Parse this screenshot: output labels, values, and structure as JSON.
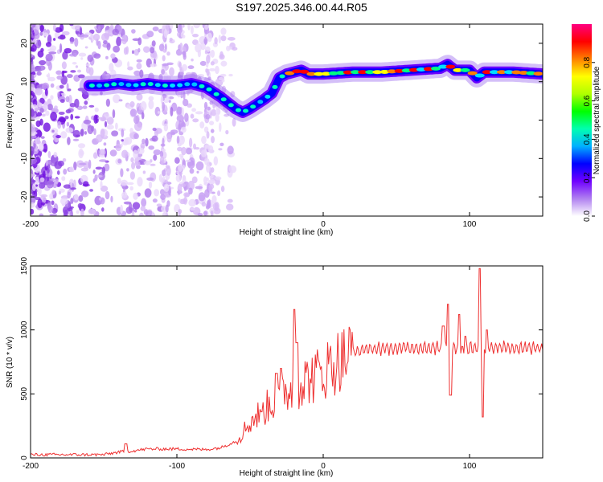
{
  "title": "S197.2025.346.00.44.R05",
  "chart_data": [
    {
      "type": "heatmap",
      "xlabel": "Height of straight line (km)",
      "ylabel": "Frequency (Hz)",
      "xlim": [
        -200,
        150
      ],
      "ylim": [
        -25,
        25
      ],
      "xticks": [
        -200,
        -100,
        0,
        100
      ],
      "yticks": [
        -20,
        -10,
        0,
        10,
        20
      ],
      "colorbar": {
        "label": "Normalized spectral amplitude",
        "range": [
          0,
          1
        ],
        "ticks": [
          0.0,
          0.2,
          0.4,
          0.6,
          0.8
        ],
        "tick_labels": [
          "0.0",
          "0.2",
          "0.4",
          "0.6",
          "0.8"
        ],
        "colormap": [
          "#ffffff",
          "#b080f0",
          "#7000ff",
          "#0000ff",
          "#00b0ff",
          "#00ffb0",
          "#00ff00",
          "#b0ff00",
          "#ffff00",
          "#ff8000",
          "#ff0000",
          "#ff0080"
        ]
      },
      "ridge": {
        "x": [
          -160,
          -150,
          -140,
          -130,
          -120,
          -110,
          -100,
          -90,
          -80,
          -70,
          -60,
          -55,
          -50,
          -40,
          -35,
          -30,
          -25,
          -20,
          -15,
          -10,
          0,
          20,
          40,
          60,
          80,
          85,
          90,
          100,
          105,
          110,
          130,
          150
        ],
        "y": [
          9,
          9,
          9.5,
          9,
          9.5,
          9,
          9,
          9.5,
          8.5,
          6,
          3,
          2,
          3,
          5.5,
          7,
          11,
          12,
          12.5,
          13,
          12,
          12,
          12.5,
          12.5,
          13,
          13.5,
          14.5,
          13,
          13,
          11,
          12.5,
          12.5,
          12
        ]
      }
    },
    {
      "type": "line",
      "xlabel": "Height of straight line (km)",
      "ylabel": "SNR (10 * v/v)",
      "xlim": [
        -200,
        150
      ],
      "ylim": [
        0,
        1500
      ],
      "xticks": [
        -200,
        -100,
        0,
        100
      ],
      "yticks": [
        0,
        500,
        1000,
        1500
      ],
      "color": "#ee3030",
      "envelope": {
        "x": [
          -200,
          -150,
          -140,
          -130,
          -120,
          -100,
          -80,
          -70,
          -60,
          -55,
          -50,
          -45,
          -40,
          -35,
          -30,
          -25,
          -20,
          -15,
          -10,
          -5,
          0,
          10,
          20,
          30,
          40,
          50,
          60,
          70,
          80,
          85,
          90,
          95,
          100,
          105,
          110,
          115,
          120,
          130,
          140,
          150
        ],
        "y": [
          25,
          25,
          45,
          55,
          70,
          70,
          65,
          80,
          130,
          200,
          280,
          330,
          380,
          430,
          480,
          520,
          560,
          590,
          620,
          640,
          680,
          760,
          820,
          850,
          855,
          860,
          860,
          860,
          860,
          870,
          860,
          840,
          860,
          860,
          860,
          860,
          860,
          860,
          860,
          860
        ]
      },
      "spikes": [
        {
          "x": -135,
          "y": 110
        },
        {
          "x": -42,
          "y": 360
        },
        {
          "x": -32,
          "y": 660
        },
        {
          "x": -29,
          "y": 700
        },
        {
          "x": -20,
          "y": 1160
        },
        {
          "x": -18,
          "y": 900
        },
        {
          "x": 82,
          "y": 1030
        },
        {
          "x": 85,
          "y": 1200
        },
        {
          "x": 87,
          "y": 490
        },
        {
          "x": 93,
          "y": 1120
        },
        {
          "x": 97,
          "y": 950
        },
        {
          "x": 107,
          "y": 1480
        },
        {
          "x": 109,
          "y": 320
        },
        {
          "x": 112,
          "y": 1000
        }
      ]
    }
  ]
}
